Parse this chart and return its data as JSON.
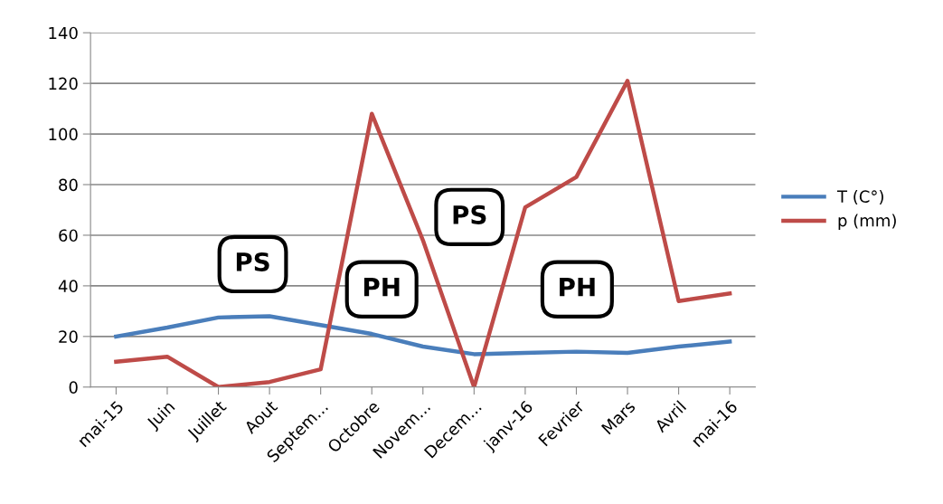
{
  "chart_data": {
    "type": "line",
    "categories": [
      "mai-15",
      "Juin",
      "Juillet",
      "Aout",
      "Septem...",
      "Octobre",
      "Novem...",
      "Decem...",
      "janv-16",
      "Fevrier",
      "Mars",
      "Avril",
      "mai-16"
    ],
    "series": [
      {
        "name": "T (C°)",
        "color": "#4a7ebb",
        "values": [
          20,
          23.5,
          27.5,
          28,
          24.5,
          21,
          16,
          13,
          13.5,
          14,
          13.5,
          16,
          18
        ]
      },
      {
        "name": "p (mm)",
        "color": "#be4b48",
        "values": [
          10,
          12,
          0,
          2,
          7,
          108,
          58,
          0,
          71,
          83,
          121,
          34,
          37
        ]
      }
    ],
    "ylim": [
      0,
      140
    ],
    "yticks": [
      0,
      20,
      40,
      60,
      80,
      100,
      120,
      140
    ],
    "grid": "y",
    "legend": "right",
    "marker": "none",
    "line_style": "solid",
    "annotations": [
      "PS",
      "PH",
      "PS",
      "PH"
    ]
  }
}
